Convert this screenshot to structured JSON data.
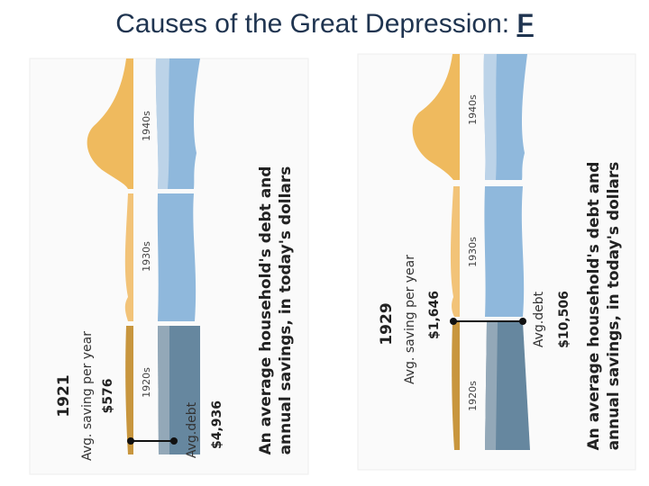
{
  "title": {
    "text": "Causes of the Great Depression: ",
    "emphasis": "F"
  },
  "panels": [
    {
      "year": "1921",
      "saving_label": "Avg. saving per year",
      "saving": "$576",
      "debt_label": "Avg.debt",
      "debt": "$4,936",
      "decades": [
        "1940s",
        "1930s",
        "1920s"
      ],
      "caption": [
        "An average household's debt and",
        "annual savings, in today's dollars"
      ]
    },
    {
      "year": "1929",
      "saving_label": "Avg. saving per year",
      "saving": "$1,646",
      "debt_label": "Avg.debt",
      "debt": "$10,506",
      "decades": [
        "1940s",
        "1930s",
        "1920s"
      ],
      "caption": [
        "An average household's debt and",
        "annual savings, in today's dollars"
      ]
    }
  ]
}
